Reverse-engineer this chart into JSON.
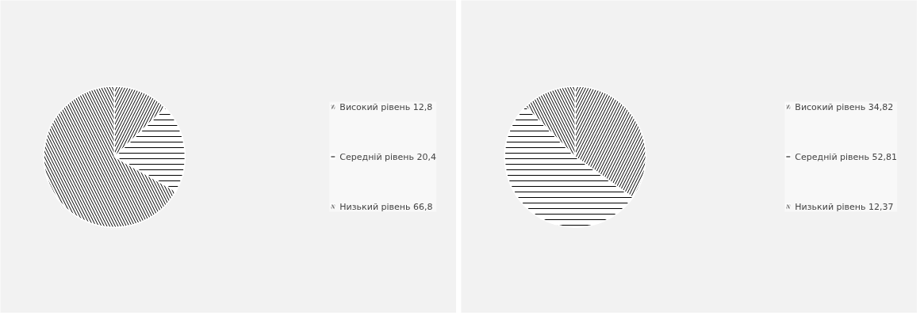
{
  "chart_data": [
    {
      "type": "pie",
      "categories": [
        "Високий рівень",
        "Середній рівень",
        "Низький рівень"
      ],
      "values": [
        12.8,
        20.4,
        66.8
      ],
      "value_labels": [
        "12,8",
        "20,4",
        "66,8"
      ],
      "colors": [
        "#ffffff",
        "#ffffff",
        "#ffffff"
      ],
      "legend": "right"
    },
    {
      "type": "pie",
      "categories": [
        "Високий рівень",
        "Середній рівень",
        "Низький рівень"
      ],
      "values": [
        34.82,
        52.81,
        12.37
      ],
      "value_labels": [
        "34,82",
        "52,81",
        "12,37"
      ],
      "colors": [
        "#ffffff",
        "#ffffff",
        "#ffffff"
      ],
      "legend": "right"
    }
  ]
}
